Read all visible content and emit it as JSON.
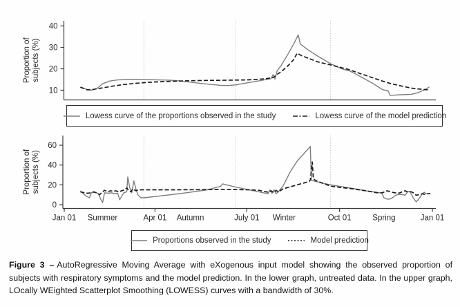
{
  "figure": {
    "caption_label": "Figure 3 –",
    "caption_text": "AutoRegressive Moving Average with eXogenous input model showing the observed proportion of subjects with respiratory symptoms and the model prediction. In the lower graph, untreated data. In the upper graph, LOcally WEighted Scatterplot Smoothing (LOWESS) curves with a bandwidth of 30%."
  },
  "colors": {
    "observed": "#7d7d7d",
    "model": "#1c1c1c",
    "axis": "#3a3a3a",
    "grid": "#cccccc",
    "text": "#2b2b2b"
  },
  "legends": [
    {
      "id": "lowess",
      "items": [
        {
          "label": "Lowess curve of the proportions observed in the study",
          "sample": "solid-gray"
        },
        {
          "label": "Lowess curve of the model prediction",
          "sample": "dashed-black"
        }
      ]
    },
    {
      "id": "raw",
      "items": [
        {
          "label": "Proportions observed in the study",
          "sample": "solid-gray"
        },
        {
          "label": "Model prediction",
          "sample": "dotted-black"
        }
      ]
    }
  ],
  "chart_data": [
    {
      "type": "line",
      "position": "upper",
      "title": "",
      "xlabel": "",
      "ylabel": "Proportion of subjects (%)",
      "ylabel_lines": [
        "Proportion of",
        "subjects (%)"
      ],
      "x_unit": "day of year (Jan 01 to Jan 01)",
      "x_range_days": [
        0,
        365
      ],
      "ylim": [
        4,
        42
      ],
      "y_ticks": [
        10,
        20,
        30,
        40
      ],
      "grid_days": [
        79,
        170,
        264
      ],
      "legend_position": "below-panel-box",
      "grid": "vertical-season-boundaries-only",
      "series": [
        {
          "name": "Lowess curve of the proportions observed in the study",
          "line": "solid",
          "color_key": "observed",
          "points": [
            [
              16,
              11.5
            ],
            [
              23,
              10.3
            ],
            [
              27,
              10
            ],
            [
              33,
              11
            ],
            [
              38,
              13
            ],
            [
              45,
              14.3
            ],
            [
              53,
              14.8
            ],
            [
              63,
              15
            ],
            [
              73,
              15
            ],
            [
              87,
              14.9
            ],
            [
              104,
              14.7
            ],
            [
              114,
              14.4
            ],
            [
              121,
              14
            ],
            [
              128,
              13.6
            ],
            [
              135,
              13.2
            ],
            [
              145,
              12.7
            ],
            [
              155,
              12.3
            ],
            [
              162,
              12.2
            ],
            [
              170,
              12.5
            ],
            [
              176,
              13
            ],
            [
              186,
              13.8
            ],
            [
              197,
              14.7
            ],
            [
              200,
              15
            ],
            [
              205,
              15.4
            ],
            [
              207,
              17.3
            ],
            [
              209,
              15.2
            ],
            [
              211,
              19
            ],
            [
              215,
              21.5
            ],
            [
              222,
              27
            ],
            [
              228,
              32
            ],
            [
              232,
              35.8
            ],
            [
              234,
              31.6
            ],
            [
              241,
              29.1
            ],
            [
              251,
              26
            ],
            [
              264,
              22.4
            ],
            [
              275,
              20
            ],
            [
              283,
              19
            ],
            [
              292,
              16.8
            ],
            [
              306,
              13.2
            ],
            [
              316,
              10.2
            ],
            [
              321,
              9.8
            ],
            [
              323,
              7.6
            ],
            [
              334,
              7.9
            ],
            [
              344,
              8.1
            ],
            [
              351,
              8.9
            ],
            [
              358,
              10.4
            ],
            [
              362,
              11.5
            ]
          ]
        },
        {
          "name": "Lowess curve of the model prediction",
          "line": "dashed",
          "color_key": "model",
          "points": [
            [
              16,
              11.4
            ],
            [
              23,
              10.2
            ],
            [
              29,
              10.4
            ],
            [
              39,
              11.2
            ],
            [
              49,
              12
            ],
            [
              60,
              12.7
            ],
            [
              70,
              13.2
            ],
            [
              84,
              13.7
            ],
            [
              97,
              14
            ],
            [
              114,
              14.3
            ],
            [
              131,
              14.5
            ],
            [
              149,
              14.6
            ],
            [
              166,
              14.7
            ],
            [
              179,
              14.8
            ],
            [
              190,
              15
            ],
            [
              200,
              15.4
            ],
            [
              207,
              15.9
            ],
            [
              211,
              17.3
            ],
            [
              216,
              19
            ],
            [
              222,
              21.5
            ],
            [
              227,
              24
            ],
            [
              231,
              27.3
            ],
            [
              235,
              26.2
            ],
            [
              251,
              23.3
            ],
            [
              264,
              21.8
            ],
            [
              275,
              20.5
            ],
            [
              283,
              19.5
            ],
            [
              292,
              18
            ],
            [
              306,
              15.8
            ],
            [
              316,
              14.2
            ],
            [
              323,
              13.2
            ],
            [
              334,
              12
            ],
            [
              344,
              11
            ],
            [
              351,
              10.6
            ],
            [
              358,
              10.3
            ],
            [
              362,
              10.2
            ]
          ]
        }
      ]
    },
    {
      "type": "line",
      "position": "lower",
      "title": "",
      "xlabel": "",
      "ylabel": "Proportion of subjects (%)",
      "ylabel_lines": [
        "Proportion of",
        "subjects (%)"
      ],
      "x_unit": "day of year (Jan 01 to Jan 01)",
      "x_range_days": [
        0,
        365
      ],
      "ylim": [
        0,
        70
      ],
      "y_ticks": [
        0,
        20,
        40,
        60
      ],
      "grid_days": [
        79,
        170,
        264
      ],
      "x_ticks": [
        {
          "day": 0,
          "label": "Jan 01"
        },
        {
          "day": 90,
          "label": "Apr 01"
        },
        {
          "day": 181,
          "label": "July 01"
        },
        {
          "day": 273,
          "label": "Oct 01"
        },
        {
          "day": 365,
          "label": "Jan 01"
        }
      ],
      "season_labels": [
        {
          "day": 38,
          "label": "Summer"
        },
        {
          "day": 125,
          "label": "Autumn"
        },
        {
          "day": 218,
          "label": "Winter"
        },
        {
          "day": 317,
          "label": "Spring"
        }
      ],
      "series": [
        {
          "name": "Proportions observed in the study",
          "line": "solid",
          "color_key": "observed",
          "points": [
            [
              16,
              14
            ],
            [
              19,
              11
            ],
            [
              22,
              8.5
            ],
            [
              25,
              7
            ],
            [
              27,
              12
            ],
            [
              31,
              12.5
            ],
            [
              34,
              11
            ],
            [
              36,
              6
            ],
            [
              38,
              2
            ],
            [
              40,
              12
            ],
            [
              44,
              11.5
            ],
            [
              47,
              12
            ],
            [
              50,
              11
            ],
            [
              53,
              11.5
            ],
            [
              55,
              5
            ],
            [
              59,
              12
            ],
            [
              62,
              13
            ],
            [
              63,
              28
            ],
            [
              65,
              17
            ],
            [
              67,
              12
            ],
            [
              69,
              24
            ],
            [
              71,
              16
            ],
            [
              73,
              10
            ],
            [
              76,
              7
            ],
            [
              79,
              7
            ],
            [
              101,
              9.5
            ],
            [
              121,
              12
            ],
            [
              142,
              15
            ],
            [
              155,
              18.5
            ],
            [
              157,
              21
            ],
            [
              169,
              18
            ],
            [
              183,
              15
            ],
            [
              193,
              13
            ],
            [
              202,
              11
            ],
            [
              204,
              15
            ],
            [
              206,
              11.5
            ],
            [
              208,
              15
            ],
            [
              210,
              11
            ],
            [
              212,
              12.7
            ],
            [
              217,
              19
            ],
            [
              224,
              33
            ],
            [
              231,
              44
            ],
            [
              244,
              58.7
            ],
            [
              245,
              24.5
            ],
            [
              251,
              23
            ],
            [
              264,
              20
            ],
            [
              273,
              18.5
            ],
            [
              286,
              16.5
            ],
            [
              299,
              14
            ],
            [
              310,
              12.5
            ],
            [
              315,
              11.5
            ],
            [
              317,
              7
            ],
            [
              319,
              6
            ],
            [
              321,
              5.5
            ],
            [
              324,
              6
            ],
            [
              326,
              7.5
            ],
            [
              328,
              9
            ],
            [
              330,
              10
            ],
            [
              333,
              10.5
            ],
            [
              336,
              10
            ],
            [
              338,
              9.5
            ],
            [
              340,
              12.5
            ],
            [
              342,
              13.5
            ],
            [
              344,
              11
            ],
            [
              346,
              7
            ],
            [
              348,
              4
            ],
            [
              349,
              3
            ],
            [
              351,
              5
            ],
            [
              353,
              8
            ],
            [
              355,
              11
            ],
            [
              357,
              12.5
            ],
            [
              359,
              11
            ],
            [
              361,
              11
            ],
            [
              363,
              11.5
            ]
          ]
        },
        {
          "name": "Model prediction",
          "line": "dashed",
          "color_key": "model",
          "points": [
            [
              16,
              13
            ],
            [
              20,
              12
            ],
            [
              23,
              11.5
            ],
            [
              26,
              12
            ],
            [
              29,
              13
            ],
            [
              32,
              12
            ],
            [
              35,
              10
            ],
            [
              38,
              13
            ],
            [
              40,
              14.5
            ],
            [
              43,
              13
            ],
            [
              46,
              14
            ],
            [
              49,
              13.5
            ],
            [
              51,
              14
            ],
            [
              54,
              13
            ],
            [
              57,
              14
            ],
            [
              60,
              15
            ],
            [
              62,
              17
            ],
            [
              64,
              14
            ],
            [
              66,
              13
            ],
            [
              68,
              16
            ],
            [
              71,
              14
            ],
            [
              73,
              14.8
            ],
            [
              76,
              15
            ],
            [
              108,
              15
            ],
            [
              142,
              15.2
            ],
            [
              155,
              15.5
            ],
            [
              169,
              15.3
            ],
            [
              183,
              15
            ],
            [
              193,
              14.5
            ],
            [
              200,
              13
            ],
            [
              203,
              12.5
            ],
            [
              205,
              14
            ],
            [
              208,
              12
            ],
            [
              210,
              14.5
            ],
            [
              212,
              13
            ],
            [
              214,
              14
            ],
            [
              217,
              16
            ],
            [
              224,
              18
            ],
            [
              231,
              20
            ],
            [
              238,
              22
            ],
            [
              243,
              23.5
            ],
            [
              244,
              25
            ],
            [
              246,
              43
            ],
            [
              247,
              26
            ],
            [
              250,
              24
            ],
            [
              264,
              18.7
            ],
            [
              273,
              17.5
            ],
            [
              286,
              16
            ],
            [
              299,
              14
            ],
            [
              310,
              12
            ],
            [
              315,
              12
            ],
            [
              318,
              13
            ],
            [
              320,
              14
            ],
            [
              322,
              13.5
            ],
            [
              325,
              12.5
            ],
            [
              328,
              12
            ],
            [
              331,
              11.5
            ],
            [
              333,
              12
            ],
            [
              336,
              13.5
            ],
            [
              338,
              14
            ],
            [
              340,
              13
            ],
            [
              342,
              13.5
            ],
            [
              344,
              13
            ],
            [
              346,
              12
            ],
            [
              349,
              9.5
            ],
            [
              351,
              10
            ],
            [
              353,
              10.5
            ],
            [
              355,
              11
            ],
            [
              357,
              10.5
            ],
            [
              359,
              11
            ],
            [
              361,
              11
            ],
            [
              363,
              11
            ]
          ]
        }
      ]
    }
  ]
}
